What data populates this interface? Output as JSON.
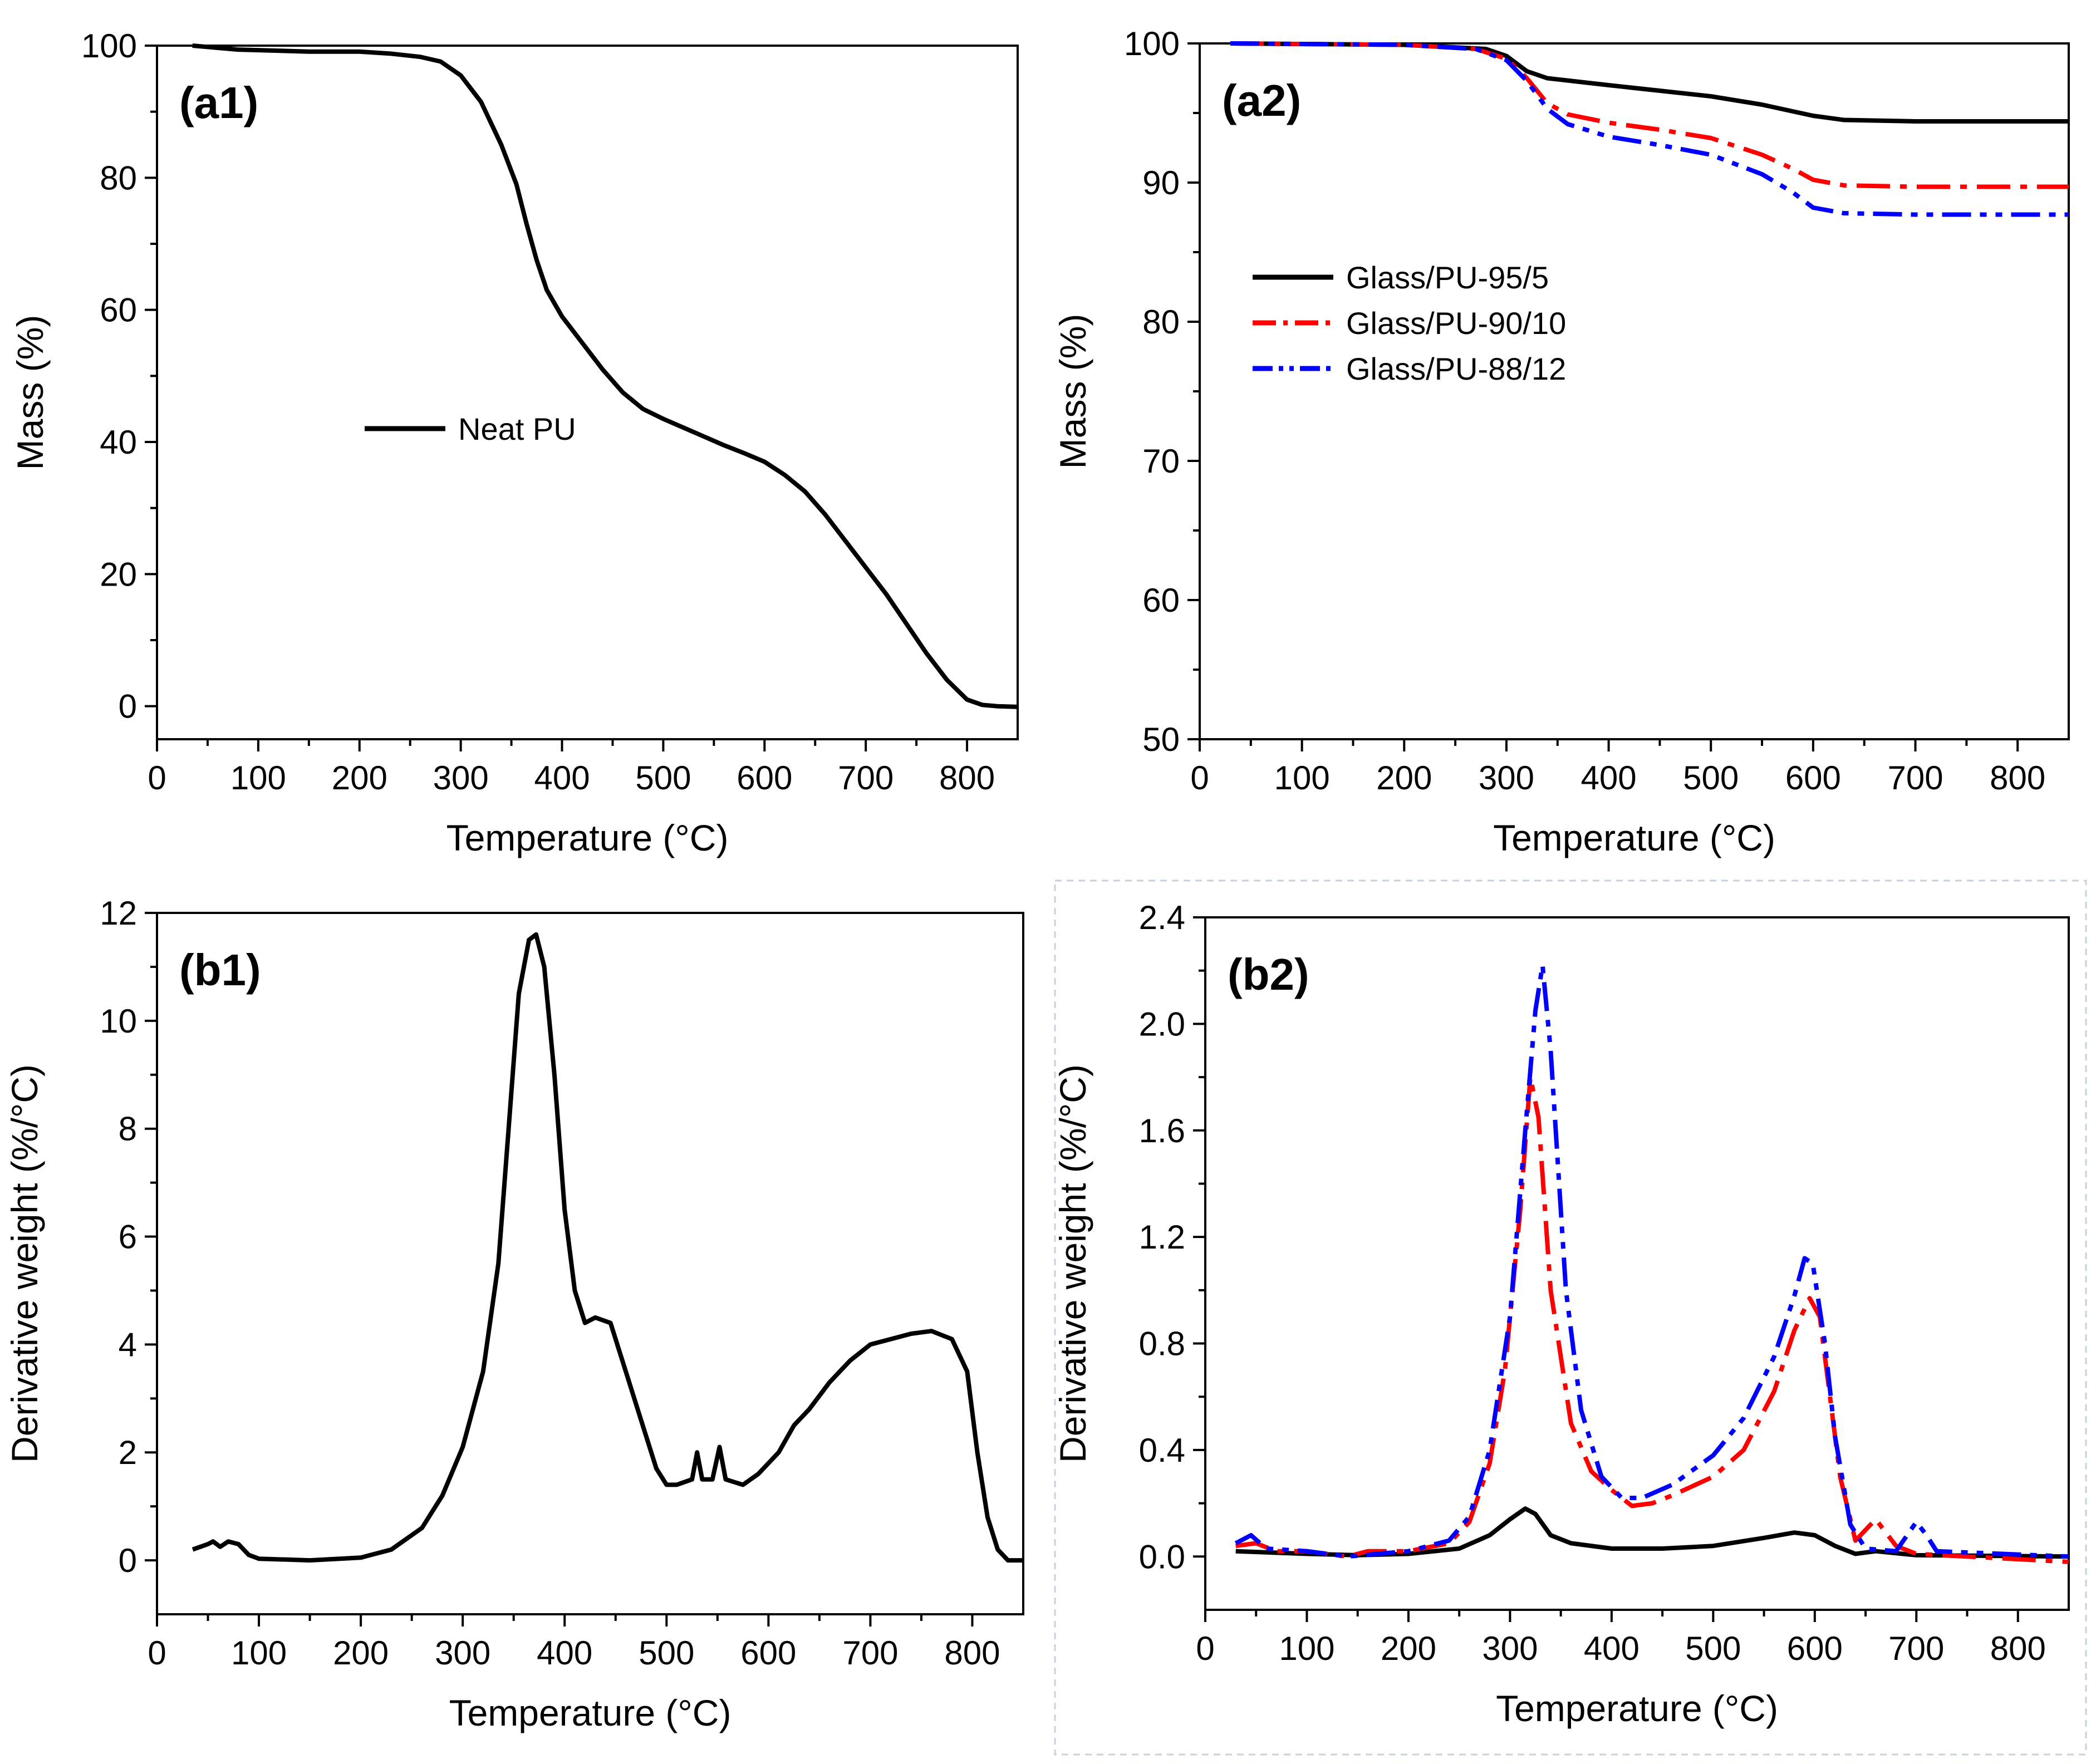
{
  "colors": {
    "black": "#000000",
    "red": "#ff0000",
    "blue": "#0000ff",
    "frame": "#c8d2dc"
  },
  "chart_data": [
    {
      "id": "a1",
      "type": "line",
      "panel_label": "(a1)",
      "xlabel": "Temperature (°C)",
      "ylabel": "Mass (%)",
      "xlim": [
        0,
        850
      ],
      "ylim": [
        -5,
        100
      ],
      "xticks": [
        0,
        100,
        200,
        300,
        400,
        500,
        600,
        700,
        800
      ],
      "yticks": [
        0,
        20,
        40,
        60,
        80,
        100
      ],
      "legend": {
        "placement": "center-left"
      },
      "series": [
        {
          "name": "Neat PU",
          "color": "#000000",
          "dash": "solid",
          "show_in_legend": true,
          "points": [
            [
              35,
              100
            ],
            [
              80,
              99.4
            ],
            [
              150,
              99.1
            ],
            [
              200,
              99.1
            ],
            [
              230,
              98.8
            ],
            [
              260,
              98.3
            ],
            [
              280,
              97.6
            ],
            [
              300,
              95.5
            ],
            [
              320,
              91.5
            ],
            [
              340,
              85
            ],
            [
              355,
              79
            ],
            [
              365,
              73
            ],
            [
              375,
              67.5
            ],
            [
              385,
              63
            ],
            [
              400,
              59
            ],
            [
              420,
              55
            ],
            [
              440,
              51
            ],
            [
              460,
              47.5
            ],
            [
              480,
              45
            ],
            [
              500,
              43.5
            ],
            [
              530,
              41.5
            ],
            [
              560,
              39.5
            ],
            [
              580,
              38.3
            ],
            [
              600,
              37
            ],
            [
              620,
              35
            ],
            [
              640,
              32.5
            ],
            [
              660,
              29
            ],
            [
              680,
              25
            ],
            [
              700,
              21
            ],
            [
              720,
              17
            ],
            [
              740,
              12.5
            ],
            [
              760,
              8
            ],
            [
              780,
              4
            ],
            [
              800,
              1
            ],
            [
              815,
              0.2
            ],
            [
              830,
              0
            ],
            [
              850,
              -0.1
            ]
          ]
        }
      ]
    },
    {
      "id": "a2",
      "type": "line",
      "panel_label": "(a2)",
      "xlabel": "Temperature (°C)",
      "ylabel": "Mass (%)",
      "xlim": [
        0,
        850
      ],
      "ylim": [
        50,
        100
      ],
      "xticks": [
        0,
        100,
        200,
        300,
        400,
        500,
        600,
        700,
        800
      ],
      "yticks": [
        50,
        60,
        70,
        80,
        90,
        100
      ],
      "legend": {
        "placement": "upper-left"
      },
      "series": [
        {
          "name": "Glass/PU-95/5",
          "color": "#000000",
          "dash": "solid",
          "show_in_legend": true,
          "points": [
            [
              30,
              100
            ],
            [
              200,
              99.9
            ],
            [
              280,
              99.6
            ],
            [
              300,
              99.1
            ],
            [
              320,
              98
            ],
            [
              340,
              97.5
            ],
            [
              400,
              97
            ],
            [
              450,
              96.6
            ],
            [
              500,
              96.2
            ],
            [
              550,
              95.6
            ],
            [
              600,
              94.8
            ],
            [
              630,
              94.5
            ],
            [
              700,
              94.4
            ],
            [
              850,
              94.4
            ]
          ]
        },
        {
          "name": "Glass/PU-90/10",
          "color": "#ff0000",
          "dash": "dashdot",
          "show_in_legend": true,
          "points": [
            [
              30,
              100
            ],
            [
              200,
              99.9
            ],
            [
              270,
              99.6
            ],
            [
              300,
              98.9
            ],
            [
              320,
              97.5
            ],
            [
              340,
              95.7
            ],
            [
              360,
              94.9
            ],
            [
              400,
              94.3
            ],
            [
              450,
              93.8
            ],
            [
              500,
              93.2
            ],
            [
              550,
              92
            ],
            [
              580,
              91
            ],
            [
              600,
              90.2
            ],
            [
              630,
              89.8
            ],
            [
              700,
              89.7
            ],
            [
              850,
              89.7
            ]
          ]
        },
        {
          "name": "Glass/PU-88/12",
          "color": "#0000ff",
          "dash": "dashdotdot",
          "show_in_legend": true,
          "points": [
            [
              30,
              100
            ],
            [
              200,
              99.9
            ],
            [
              270,
              99.6
            ],
            [
              300,
              98.8
            ],
            [
              320,
              97.3
            ],
            [
              340,
              95.3
            ],
            [
              360,
              94.2
            ],
            [
              400,
              93.3
            ],
            [
              450,
              92.7
            ],
            [
              500,
              92
            ],
            [
              550,
              90.6
            ],
            [
              580,
              89.3
            ],
            [
              600,
              88.2
            ],
            [
              630,
              87.8
            ],
            [
              700,
              87.7
            ],
            [
              850,
              87.7
            ]
          ]
        }
      ]
    },
    {
      "id": "b1",
      "type": "line",
      "panel_label": "(b1)",
      "xlabel": "Temperature (°C)",
      "ylabel": "Derivative weight (%/°C)",
      "xlim": [
        0,
        850
      ],
      "ylim": [
        -1,
        12
      ],
      "xticks": [
        0,
        100,
        200,
        300,
        400,
        500,
        600,
        700,
        800
      ],
      "yticks": [
        0,
        2,
        4,
        6,
        8,
        10,
        12
      ],
      "legend": {
        "placement": "none"
      },
      "series": [
        {
          "name": "Neat PU",
          "color": "#000000",
          "dash": "solid",
          "show_in_legend": false,
          "points": [
            [
              35,
              0.2
            ],
            [
              50,
              0.3
            ],
            [
              55,
              0.35
            ],
            [
              62,
              0.25
            ],
            [
              70,
              0.35
            ],
            [
              80,
              0.3
            ],
            [
              90,
              0.1
            ],
            [
              100,
              0.03
            ],
            [
              150,
              0
            ],
            [
              200,
              0.05
            ],
            [
              230,
              0.2
            ],
            [
              260,
              0.6
            ],
            [
              280,
              1.2
            ],
            [
              300,
              2.1
            ],
            [
              320,
              3.5
            ],
            [
              335,
              5.5
            ],
            [
              345,
              8
            ],
            [
              355,
              10.5
            ],
            [
              365,
              11.5
            ],
            [
              372,
              11.6
            ],
            [
              380,
              11
            ],
            [
              390,
              9
            ],
            [
              400,
              6.5
            ],
            [
              410,
              5
            ],
            [
              420,
              4.4
            ],
            [
              430,
              4.5
            ],
            [
              445,
              4.4
            ],
            [
              460,
              3.5
            ],
            [
              475,
              2.6
            ],
            [
              490,
              1.7
            ],
            [
              500,
              1.4
            ],
            [
              510,
              1.4
            ],
            [
              525,
              1.5
            ],
            [
              530,
              2
            ],
            [
              535,
              1.5
            ],
            [
              545,
              1.5
            ],
            [
              552,
              2.1
            ],
            [
              558,
              1.5
            ],
            [
              575,
              1.4
            ],
            [
              590,
              1.6
            ],
            [
              610,
              2
            ],
            [
              625,
              2.5
            ],
            [
              640,
              2.8
            ],
            [
              660,
              3.3
            ],
            [
              680,
              3.7
            ],
            [
              700,
              4
            ],
            [
              720,
              4.1
            ],
            [
              740,
              4.2
            ],
            [
              760,
              4.25
            ],
            [
              780,
              4.1
            ],
            [
              795,
              3.5
            ],
            [
              805,
              2
            ],
            [
              815,
              0.8
            ],
            [
              825,
              0.2
            ],
            [
              835,
              0
            ],
            [
              850,
              0
            ]
          ]
        }
      ]
    },
    {
      "id": "b2",
      "type": "line",
      "panel_label": "(b2)",
      "xlabel": "Temperature (°C)",
      "ylabel": "Derivative weight (%/°C)",
      "xlim": [
        0,
        850
      ],
      "ylim": [
        -0.2,
        2.4
      ],
      "xticks": [
        0,
        100,
        200,
        300,
        400,
        500,
        600,
        700,
        800
      ],
      "yticks": [
        "0.0",
        "0.4",
        "0.8",
        "1.2",
        "1.6",
        "2.0",
        "2.4"
      ],
      "legend": {
        "placement": "none"
      },
      "series": [
        {
          "name": "Glass/PU-95/5",
          "color": "#000000",
          "dash": "solid",
          "show_in_legend": false,
          "points": [
            [
              30,
              0.02
            ],
            [
              100,
              0.01
            ],
            [
              150,
              0.005
            ],
            [
              200,
              0.01
            ],
            [
              250,
              0.03
            ],
            [
              280,
              0.08
            ],
            [
              300,
              0.14
            ],
            [
              315,
              0.18
            ],
            [
              325,
              0.16
            ],
            [
              340,
              0.08
            ],
            [
              360,
              0.05
            ],
            [
              400,
              0.03
            ],
            [
              450,
              0.03
            ],
            [
              500,
              0.04
            ],
            [
              550,
              0.07
            ],
            [
              580,
              0.09
            ],
            [
              600,
              0.08
            ],
            [
              620,
              0.04
            ],
            [
              640,
              0.01
            ],
            [
              660,
              0.02
            ],
            [
              700,
              0.005
            ],
            [
              850,
              0
            ]
          ]
        },
        {
          "name": "Glass/PU-90/10",
          "color": "#ff0000",
          "dash": "dashdot",
          "show_in_legend": false,
          "points": [
            [
              30,
              0.04
            ],
            [
              50,
              0.05
            ],
            [
              70,
              0.02
            ],
            [
              100,
              0.02
            ],
            [
              140,
              0
            ],
            [
              160,
              0.02
            ],
            [
              200,
              0.02
            ],
            [
              240,
              0.05
            ],
            [
              260,
              0.13
            ],
            [
              280,
              0.35
            ],
            [
              295,
              0.7
            ],
            [
              310,
              1.3
            ],
            [
              320,
              1.8
            ],
            [
              328,
              1.65
            ],
            [
              340,
              1
            ],
            [
              360,
              0.5
            ],
            [
              380,
              0.32
            ],
            [
              400,
              0.25
            ],
            [
              420,
              0.19
            ],
            [
              440,
              0.2
            ],
            [
              460,
              0.23
            ],
            [
              500,
              0.3
            ],
            [
              530,
              0.4
            ],
            [
              560,
              0.62
            ],
            [
              580,
              0.85
            ],
            [
              595,
              0.97
            ],
            [
              605,
              0.9
            ],
            [
              615,
              0.6
            ],
            [
              625,
              0.3
            ],
            [
              640,
              0.06
            ],
            [
              660,
              0.14
            ],
            [
              680,
              0.04
            ],
            [
              700,
              0.01
            ],
            [
              850,
              -0.02
            ]
          ]
        },
        {
          "name": "Glass/PU-88/12",
          "color": "#0000ff",
          "dash": "dashdotdot",
          "show_in_legend": false,
          "points": [
            [
              30,
              0.05
            ],
            [
              45,
              0.08
            ],
            [
              60,
              0.03
            ],
            [
              100,
              0.02
            ],
            [
              140,
              0
            ],
            [
              200,
              0.02
            ],
            [
              240,
              0.06
            ],
            [
              260,
              0.15
            ],
            [
              280,
              0.4
            ],
            [
              300,
              0.9
            ],
            [
              315,
              1.6
            ],
            [
              325,
              2.05
            ],
            [
              332,
              2.22
            ],
            [
              340,
              1.9
            ],
            [
              355,
              1
            ],
            [
              370,
              0.55
            ],
            [
              390,
              0.3
            ],
            [
              410,
              0.22
            ],
            [
              430,
              0.22
            ],
            [
              460,
              0.27
            ],
            [
              500,
              0.38
            ],
            [
              530,
              0.52
            ],
            [
              560,
              0.75
            ],
            [
              580,
              0.98
            ],
            [
              590,
              1.12
            ],
            [
              598,
              1.1
            ],
            [
              610,
              0.8
            ],
            [
              620,
              0.45
            ],
            [
              635,
              0.12
            ],
            [
              650,
              0.03
            ],
            [
              680,
              0.02
            ],
            [
              700,
              0.13
            ],
            [
              710,
              0.08
            ],
            [
              720,
              0.02
            ],
            [
              850,
              0
            ]
          ]
        }
      ]
    }
  ]
}
